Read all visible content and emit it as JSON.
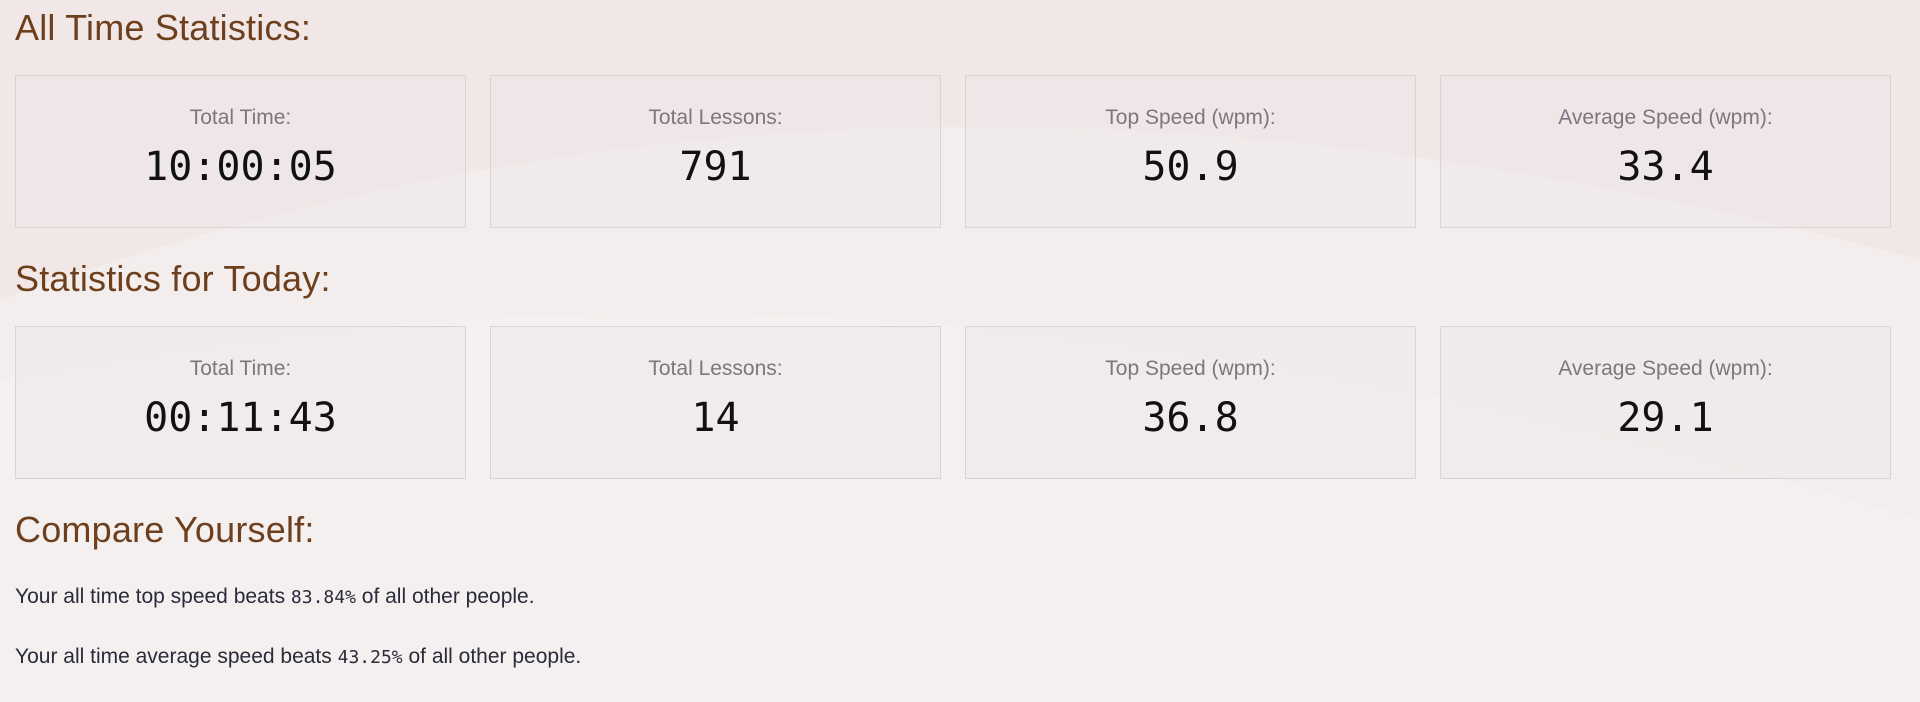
{
  "all_time": {
    "title": "All Time Statistics:",
    "stats": [
      {
        "label": "Total Time:",
        "value": "10:00:05"
      },
      {
        "label": "Total Lessons:",
        "value": "791"
      },
      {
        "label": "Top Speed (wpm):",
        "value": "50.9"
      },
      {
        "label": "Average Speed (wpm):",
        "value": "33.4"
      }
    ]
  },
  "today": {
    "title": "Statistics for Today:",
    "stats": [
      {
        "label": "Total Time:",
        "value": "00:11:43"
      },
      {
        "label": "Total Lessons:",
        "value": "14"
      },
      {
        "label": "Top Speed (wpm):",
        "value": "36.8"
      },
      {
        "label": "Average Speed (wpm):",
        "value": "29.1"
      }
    ]
  },
  "compare": {
    "title": "Compare Yourself:",
    "top_prefix": "Your all time top speed beats ",
    "top_percent": "83.84%",
    "top_suffix": " of all other people.",
    "avg_prefix": "Your all time average speed beats ",
    "avg_percent": "43.25%",
    "avg_suffix": " of all other people."
  },
  "colors": {
    "heading": "#6e3f1c",
    "background": "#f3eeed",
    "card_border": "#d9d4d3",
    "label": "#7c7680"
  }
}
